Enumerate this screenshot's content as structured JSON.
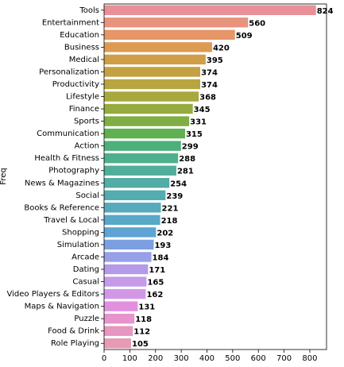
{
  "chart_data": {
    "type": "barh",
    "ylabel": "Freq",
    "categories": [
      "Tools",
      "Entertainment",
      "Education",
      "Business",
      "Medical",
      "Personalization",
      "Productivity",
      "Lifestyle",
      "Finance",
      "Sports",
      "Communication",
      "Action",
      "Health & Fitness",
      "Photography",
      "News & Magazines",
      "Social",
      "Books & Reference",
      "Travel & Local",
      "Shopping",
      "Simulation",
      "Arcade",
      "Dating",
      "Casual",
      "Video Players & Editors",
      "Maps & Navigation",
      "Puzzle",
      "Food & Drink",
      "Role Playing"
    ],
    "values": [
      824,
      560,
      509,
      420,
      395,
      374,
      374,
      368,
      345,
      331,
      315,
      299,
      288,
      281,
      254,
      239,
      221,
      218,
      202,
      193,
      184,
      171,
      165,
      162,
      131,
      118,
      112,
      105
    ],
    "colors": [
      "#e88f98",
      "#e8937d",
      "#e69667",
      "#dd9a52",
      "#d09e47",
      "#c4a244",
      "#b8a53f",
      "#a8a83d",
      "#96ab3d",
      "#7fae42",
      "#5fb14f",
      "#4cb07a",
      "#4eaf8c",
      "#50ae9b",
      "#52ada6",
      "#54acb1",
      "#56aabc",
      "#59a8c7",
      "#5ea4d5",
      "#7b9fe0",
      "#97a0e8",
      "#b49ae8",
      "#c59ae8",
      "#d298e6",
      "#e190e0",
      "#e793cc",
      "#e796c0",
      "#e79ab5"
    ],
    "xlim": [
      0,
      865
    ],
    "xticks": [
      0,
      100,
      200,
      300,
      400,
      500,
      600,
      700,
      800
    ]
  }
}
